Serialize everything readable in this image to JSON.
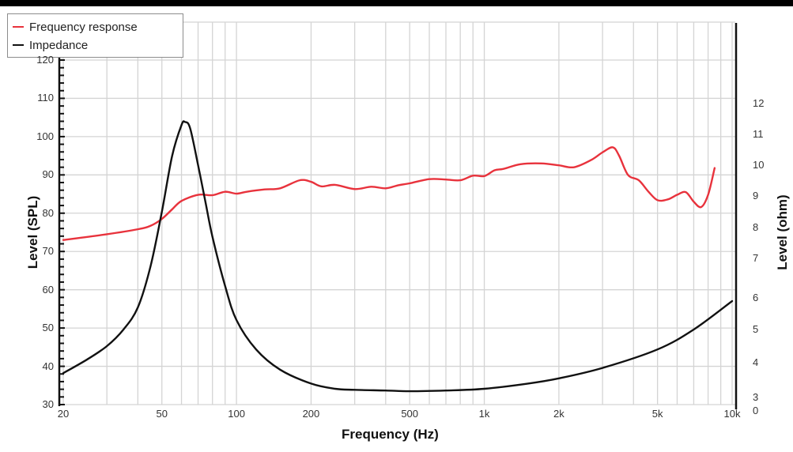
{
  "chart_data": {
    "type": "line",
    "title": "",
    "xlabel": "Frequency (Hz)",
    "ylabel": "Level (SPL)",
    "y2label": "Level (ohm)",
    "xscale": "log",
    "xlim": [
      20,
      10000
    ],
    "ylim": [
      30,
      120
    ],
    "y2_ticks": [
      "0",
      "3",
      "4",
      "5",
      "6",
      "7",
      "8",
      "9",
      "10",
      "11",
      "12"
    ],
    "x_ticks": [
      "20",
      "50",
      "100",
      "200",
      "500",
      "1k",
      "2k",
      "5k",
      "10k"
    ],
    "y_ticks": [
      "30",
      "40",
      "50",
      "60",
      "70",
      "80",
      "90",
      "100",
      "110",
      "120"
    ],
    "grid": true,
    "legend_position": "top-left",
    "series": [
      {
        "name": "Frequency response",
        "color": "#e8323c",
        "axis": "left",
        "x": [
          20,
          30,
          40,
          45,
          50,
          55,
          60,
          70,
          80,
          90,
          100,
          110,
          130,
          150,
          180,
          200,
          220,
          250,
          300,
          350,
          400,
          450,
          500,
          600,
          700,
          800,
          900,
          1000,
          1100,
          1200,
          1400,
          1700,
          2000,
          2300,
          2700,
          3000,
          3300,
          3500,
          3800,
          4200,
          4600,
          5000,
          5500,
          6000,
          6500,
          7000,
          7500,
          8000,
          8500
        ],
        "values": [
          73,
          74.5,
          75.8,
          76.7,
          78.5,
          81,
          83.2,
          84.8,
          84.7,
          85.6,
          85.1,
          85.6,
          86.2,
          86.5,
          88.6,
          88.2,
          87.0,
          87.4,
          86.3,
          86.9,
          86.5,
          87.3,
          87.8,
          88.9,
          88.8,
          88.6,
          89.8,
          89.7,
          91.2,
          91.6,
          92.8,
          93.0,
          92.5,
          92.0,
          93.9,
          95.9,
          97.2,
          95.0,
          90.0,
          88.6,
          85.6,
          83.4,
          83.6,
          84.8,
          85.5,
          83.0,
          81.6,
          84.8,
          91.8
        ]
      },
      {
        "name": "Impedance",
        "color": "#111111",
        "axis": "right",
        "x": [
          20,
          25,
          30,
          35,
          40,
          45,
          50,
          55,
          60,
          62,
          65,
          70,
          75,
          80,
          90,
          100,
          120,
          150,
          200,
          250,
          300,
          400,
          500,
          700,
          1000,
          1500,
          2000,
          3000,
          5000,
          7000,
          10000
        ],
        "values": [
          3.7,
          4.1,
          4.5,
          5.0,
          5.7,
          6.8,
          8.5,
          10.3,
          11.3,
          11.4,
          11.2,
          10.0,
          8.8,
          7.7,
          6.3,
          5.3,
          4.4,
          3.8,
          3.4,
          3.25,
          3.22,
          3.2,
          3.18,
          3.2,
          3.25,
          3.4,
          3.55,
          3.85,
          4.4,
          5.0,
          5.9
        ]
      }
    ]
  },
  "legend": {
    "items": [
      {
        "label": "Frequency response",
        "color": "#e8323c"
      },
      {
        "label": "Impedance",
        "color": "#111111"
      }
    ]
  },
  "axes": {
    "x_title": "Frequency (Hz)",
    "y_left_title": "Level (SPL)",
    "y_right_title": "Level (ohm)"
  }
}
